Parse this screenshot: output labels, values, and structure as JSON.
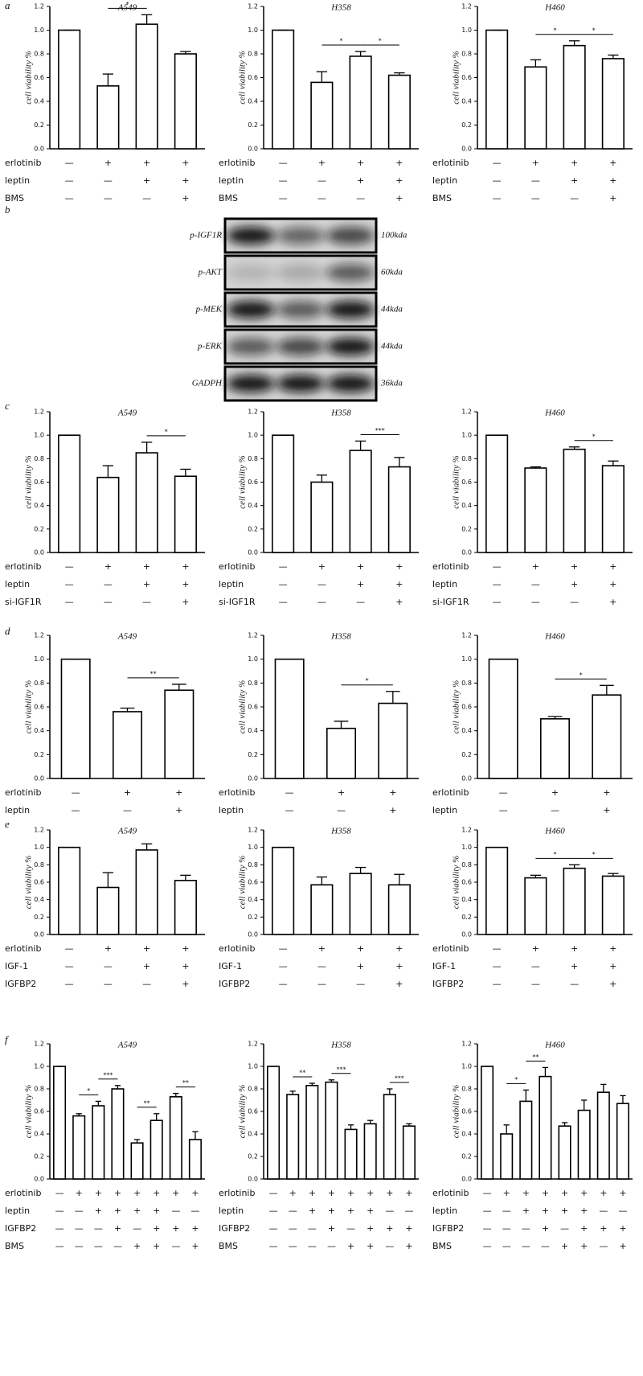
{
  "panel_labels": [
    "a",
    "b",
    "c",
    "d",
    "e",
    "f"
  ],
  "blot": {
    "bands": [
      {
        "name": "p-IGF1R",
        "size": "100kda"
      },
      {
        "name": "p-AKT",
        "size": "60kda"
      },
      {
        "name": "p-MEK",
        "size": "44kda"
      },
      {
        "name": "p-ERK",
        "size": "44kda"
      },
      {
        "name": "GADPH",
        "size": "36kda"
      }
    ]
  },
  "chart_data": [
    {
      "type": "bar",
      "title": "A549",
      "ylabel": "cell viability %",
      "ylim": [
        0,
        1.2
      ],
      "yticks": [
        {
          "value": 0,
          "label": "0.0"
        },
        0.2,
        0.4,
        0.6,
        0.8,
        {
          "value": 1,
          "label": "1.0"
        },
        1.2
      ],
      "values": [
        1.0,
        0.53,
        1.05,
        0.8
      ],
      "errors": [
        0,
        0.1,
        0.08,
        0.02
      ],
      "significance": [
        {
          "between": [
            1,
            2
          ],
          "label": "*"
        }
      ],
      "conditions": [
        {
          "label": "erlotinib",
          "marks": [
            "—",
            "+",
            "+",
            "+"
          ]
        },
        {
          "label": "leptin",
          "marks": [
            "—",
            "—",
            "+",
            "+"
          ]
        },
        {
          "label": "BMS",
          "marks": [
            "—",
            "—",
            "—",
            "+"
          ]
        }
      ]
    },
    {
      "type": "bar",
      "title": "H358",
      "ylabel": "cell viability %",
      "ylim": [
        0,
        1.2
      ],
      "yticks": [
        {
          "value": 0,
          "label": "0.0"
        },
        0.2,
        0.4,
        0.6,
        0.8,
        {
          "value": 1,
          "label": "1.0"
        },
        1.2
      ],
      "values": [
        1.0,
        0.56,
        0.78,
        0.62
      ],
      "errors": [
        0,
        0.09,
        0.04,
        0.02
      ],
      "significance": [
        {
          "between": [
            1,
            2
          ],
          "label": "*"
        },
        {
          "between": [
            2,
            3
          ],
          "label": "*"
        }
      ],
      "conditions": [
        {
          "label": "erlotinib",
          "marks": [
            "—",
            "+",
            "+",
            "+"
          ]
        },
        {
          "label": "leptin",
          "marks": [
            "—",
            "—",
            "+",
            "+"
          ]
        },
        {
          "label": "BMS",
          "marks": [
            "—",
            "—",
            "—",
            "+"
          ]
        }
      ]
    },
    {
      "type": "bar",
      "title": "H460",
      "ylabel": "cell viability %",
      "ylim": [
        0,
        1.2
      ],
      "yticks": [
        {
          "value": 0,
          "label": "0.0"
        },
        0.2,
        0.4,
        0.6,
        0.8,
        {
          "value": 1,
          "label": "1.0"
        },
        1.2
      ],
      "values": [
        1.0,
        0.69,
        0.87,
        0.76
      ],
      "errors": [
        0,
        0.06,
        0.04,
        0.03
      ],
      "significance": [
        {
          "between": [
            1,
            2
          ],
          "label": "*"
        },
        {
          "between": [
            2,
            3
          ],
          "label": "*"
        }
      ],
      "conditions": [
        {
          "label": "erlotinib",
          "marks": [
            "—",
            "+",
            "+",
            "+"
          ]
        },
        {
          "label": "leptin",
          "marks": [
            "—",
            "—",
            "+",
            "+"
          ]
        },
        {
          "label": "BMS",
          "marks": [
            "—",
            "—",
            "—",
            "+"
          ]
        }
      ]
    },
    {
      "type": "bar",
      "title": "A549",
      "ylabel": "cell viability %",
      "ylim": [
        0,
        1.2
      ],
      "yticks": [
        {
          "value": 0,
          "label": "0.0"
        },
        0.2,
        0.4,
        0.6,
        0.8,
        {
          "value": 1,
          "label": "1.0"
        },
        1.2
      ],
      "values": [
        1.0,
        0.64,
        0.85,
        0.65
      ],
      "errors": [
        0,
        0.1,
        0.09,
        0.06
      ],
      "significance": [
        {
          "between": [
            2,
            3
          ],
          "label": "*"
        }
      ],
      "conditions": [
        {
          "label": "erlotinib",
          "marks": [
            "—",
            "+",
            "+",
            "+"
          ]
        },
        {
          "label": "leptin",
          "marks": [
            "—",
            "—",
            "+",
            "+"
          ]
        },
        {
          "label": "si-IGF1R",
          "marks": [
            "—",
            "—",
            "—",
            "+"
          ]
        }
      ]
    },
    {
      "type": "bar",
      "title": "H358",
      "ylabel": "cell viability %",
      "ylim": [
        0,
        1.2
      ],
      "yticks": [
        {
          "value": 0,
          "label": "0.0"
        },
        0.2,
        0.4,
        0.6,
        0.8,
        {
          "value": 1,
          "label": "1.0"
        },
        1.2
      ],
      "values": [
        1.0,
        0.6,
        0.87,
        0.73
      ],
      "errors": [
        0,
        0.06,
        0.08,
        0.08
      ],
      "significance": [
        {
          "between": [
            2,
            3
          ],
          "label": "***"
        }
      ],
      "conditions": [
        {
          "label": "erlotinib",
          "marks": [
            "—",
            "+",
            "+",
            "+"
          ]
        },
        {
          "label": "leptin",
          "marks": [
            "—",
            "—",
            "+",
            "+"
          ]
        },
        {
          "label": "si-IGF1R",
          "marks": [
            "—",
            "—",
            "—",
            "+"
          ]
        }
      ]
    },
    {
      "type": "bar",
      "title": "H460",
      "ylabel": "cell viability %",
      "ylim": [
        0,
        1.2
      ],
      "yticks": [
        {
          "value": 0,
          "label": "0.0"
        },
        0.2,
        0.4,
        0.6,
        0.8,
        {
          "value": 1,
          "label": "1.0"
        },
        1.2
      ],
      "values": [
        1.0,
        0.72,
        0.88,
        0.74
      ],
      "errors": [
        0,
        0.01,
        0.02,
        0.04
      ],
      "significance": [
        {
          "between": [
            2,
            3
          ],
          "label": "*"
        }
      ],
      "conditions": [
        {
          "label": "erlotinib",
          "marks": [
            "—",
            "+",
            "+",
            "+"
          ]
        },
        {
          "label": "leptin",
          "marks": [
            "—",
            "—",
            "+",
            "+"
          ]
        },
        {
          "label": "si-IGF1R",
          "marks": [
            "—",
            "—",
            "—",
            "+"
          ]
        }
      ]
    },
    {
      "type": "bar",
      "title": "A549",
      "ylabel": "cell viability %",
      "ylim": [
        0,
        1.2
      ],
      "yticks": [
        {
          "value": 0,
          "label": "0.0"
        },
        0.2,
        0.4,
        0.6,
        0.8,
        {
          "value": 1,
          "label": "1.0"
        },
        1.2
      ],
      "values": [
        1.0,
        0.56,
        0.74
      ],
      "errors": [
        0,
        0.03,
        0.05
      ],
      "significance": [
        {
          "between": [
            1,
            2
          ],
          "label": "**"
        }
      ],
      "conditions": [
        {
          "label": "erlotinib",
          "marks": [
            "—",
            "+",
            "+"
          ]
        },
        {
          "label": "leptin",
          "marks": [
            "—",
            "—",
            "+"
          ]
        }
      ]
    },
    {
      "type": "bar",
      "title": "H358",
      "ylabel": "cell viability %",
      "ylim": [
        0,
        1.2
      ],
      "yticks": [
        {
          "value": 0,
          "label": "0.0"
        },
        0.2,
        0.4,
        0.6,
        0.8,
        {
          "value": 1,
          "label": "1.0"
        },
        1.2
      ],
      "values": [
        1.0,
        0.42,
        0.63
      ],
      "errors": [
        0,
        0.06,
        0.1
      ],
      "significance": [
        {
          "between": [
            1,
            2
          ],
          "label": "*"
        }
      ],
      "conditions": [
        {
          "label": "erlotinib",
          "marks": [
            "—",
            "+",
            "+"
          ]
        },
        {
          "label": "leptin",
          "marks": [
            "—",
            "—",
            "+"
          ]
        }
      ]
    },
    {
      "type": "bar",
      "title": "H460",
      "ylabel": "cell viability %",
      "ylim": [
        0,
        1.2
      ],
      "yticks": [
        {
          "value": 0,
          "label": "0.0"
        },
        0.2,
        0.4,
        0.6,
        0.8,
        {
          "value": 1,
          "label": "1.0"
        },
        1.2
      ],
      "values": [
        1.0,
        0.5,
        0.7
      ],
      "errors": [
        0,
        0.02,
        0.08
      ],
      "significance": [
        {
          "between": [
            1,
            2
          ],
          "label": "*"
        }
      ],
      "conditions": [
        {
          "label": "erlotinib",
          "marks": [
            "—",
            "+",
            "+"
          ]
        },
        {
          "label": "leptin",
          "marks": [
            "—",
            "—",
            "+"
          ]
        }
      ]
    },
    {
      "type": "bar",
      "title": "A549",
      "ylabel": "cell viability %",
      "ylim": [
        0,
        1.2
      ],
      "yticks": [
        {
          "value": 0,
          "label": "0.0"
        },
        0.2,
        0.4,
        0.6,
        0.8,
        {
          "value": 1,
          "label": "1.0"
        },
        1.2
      ],
      "values": [
        1.0,
        0.54,
        0.97,
        0.62
      ],
      "errors": [
        0,
        0.17,
        0.07,
        0.06
      ],
      "significance": [],
      "conditions": [
        {
          "label": "erlotinib",
          "marks": [
            "—",
            "+",
            "+",
            "+"
          ]
        },
        {
          "label": "IGF-1",
          "marks": [
            "—",
            "—",
            "+",
            "+"
          ]
        },
        {
          "label": "IGFBP2",
          "marks": [
            "—",
            "—",
            "—",
            "+"
          ]
        }
      ]
    },
    {
      "type": "bar",
      "title": "H358",
      "ylabel": "cell viability %",
      "ylim": [
        0,
        1.2
      ],
      "yticks": [
        {
          "value": 0,
          "label": "0.0"
        },
        0.2,
        0.4,
        0.6,
        0.8,
        {
          "value": 1,
          "label": "1.0"
        },
        1.2
      ],
      "values": [
        1.0,
        0.57,
        0.7,
        0.57
      ],
      "errors": [
        0,
        0.09,
        0.07,
        0.12
      ],
      "significance": [],
      "conditions": [
        {
          "label": "erlotinib",
          "marks": [
            "—",
            "+",
            "+",
            "+"
          ]
        },
        {
          "label": "IGF-1",
          "marks": [
            "—",
            "—",
            "+",
            "+"
          ]
        },
        {
          "label": "IGFBP2",
          "marks": [
            "—",
            "—",
            "—",
            "+"
          ]
        }
      ]
    },
    {
      "type": "bar",
      "title": "H460",
      "ylabel": "cell viability %",
      "ylim": [
        0,
        1.2
      ],
      "yticks": [
        {
          "value": 0,
          "label": "0.0"
        },
        0.2,
        0.4,
        0.6,
        0.8,
        {
          "value": 1,
          "label": "1.0"
        },
        1.2
      ],
      "values": [
        1.0,
        0.65,
        0.76,
        0.67
      ],
      "errors": [
        0,
        0.03,
        0.04,
        0.03
      ],
      "significance": [
        {
          "between": [
            1,
            2
          ],
          "label": "*"
        },
        {
          "between": [
            2,
            3
          ],
          "label": "*"
        }
      ],
      "conditions": [
        {
          "label": "erlotinib",
          "marks": [
            "—",
            "+",
            "+",
            "+"
          ]
        },
        {
          "label": "IGF-1",
          "marks": [
            "—",
            "—",
            "+",
            "+"
          ]
        },
        {
          "label": "IGFBP2",
          "marks": [
            "—",
            "—",
            "—",
            "+"
          ]
        }
      ]
    },
    {
      "type": "bar",
      "title": "A549",
      "ylabel": "cell viability %",
      "ylim": [
        0,
        1.2
      ],
      "yticks": [
        {
          "value": 0,
          "label": "0.0"
        },
        0.2,
        0.4,
        0.6,
        0.8,
        {
          "value": 1,
          "label": "1.0"
        },
        1.2
      ],
      "values": [
        1.0,
        0.56,
        0.65,
        0.8,
        0.32,
        0.52,
        0.73,
        0.35
      ],
      "errors": [
        0,
        0.02,
        0.04,
        0.03,
        0.03,
        0.06,
        0.03,
        0.07
      ],
      "significance": [
        {
          "between": [
            1,
            2
          ],
          "label": "*"
        },
        {
          "between": [
            2,
            3
          ],
          "label": "***"
        },
        {
          "between": [
            4,
            5
          ],
          "label": "**"
        },
        {
          "between": [
            6,
            7
          ],
          "label": "**"
        }
      ],
      "conditions": [
        {
          "label": "erlotinib",
          "marks": [
            "—",
            "+",
            "+",
            "+",
            "+",
            "+",
            "+",
            "+"
          ]
        },
        {
          "label": "leptin",
          "marks": [
            "—",
            "—",
            "+",
            "+",
            "+",
            "+",
            "—",
            "—"
          ]
        },
        {
          "label": "IGFBP2",
          "marks": [
            "—",
            "—",
            "—",
            "+",
            "—",
            "+",
            "+",
            "+"
          ]
        },
        {
          "label": "BMS",
          "marks": [
            "—",
            "—",
            "—",
            "—",
            "+",
            "+",
            "—",
            "+"
          ]
        }
      ]
    },
    {
      "type": "bar",
      "title": "H358",
      "ylabel": "cell viability %",
      "ylim": [
        0,
        1.2
      ],
      "yticks": [
        {
          "value": 0,
          "label": "0.0"
        },
        0.2,
        0.4,
        0.6,
        0.8,
        {
          "value": 1,
          "label": "1.0"
        },
        1.2
      ],
      "values": [
        1.0,
        0.75,
        0.83,
        0.86,
        0.44,
        0.49,
        0.75,
        0.47
      ],
      "errors": [
        0,
        0.03,
        0.02,
        0.02,
        0.04,
        0.03,
        0.05,
        0.02
      ],
      "significance": [
        {
          "between": [
            1,
            2
          ],
          "label": "**"
        },
        {
          "between": [
            3,
            4
          ],
          "label": "***"
        },
        {
          "between": [
            6,
            7
          ],
          "label": "***"
        }
      ],
      "conditions": [
        {
          "label": "erlotinib",
          "marks": [
            "—",
            "+",
            "+",
            "+",
            "+",
            "+",
            "+",
            "+"
          ]
        },
        {
          "label": "leptin",
          "marks": [
            "—",
            "—",
            "+",
            "+",
            "+",
            "+",
            "—",
            "—"
          ]
        },
        {
          "label": "IGFBP2",
          "marks": [
            "—",
            "—",
            "—",
            "+",
            "—",
            "+",
            "+",
            "+"
          ]
        },
        {
          "label": "BMS",
          "marks": [
            "—",
            "—",
            "—",
            "—",
            "+",
            "+",
            "—",
            "+"
          ]
        }
      ]
    },
    {
      "type": "bar",
      "title": "H460",
      "ylabel": "cell viability %",
      "ylim": [
        0,
        1.2
      ],
      "yticks": [
        {
          "value": 0,
          "label": "0.0"
        },
        0.2,
        0.4,
        0.6,
        0.8,
        {
          "value": 1,
          "label": "1.0"
        },
        1.2
      ],
      "values": [
        1.0,
        0.4,
        0.69,
        0.91,
        0.47,
        0.61,
        0.77,
        0.67
      ],
      "errors": [
        0,
        0.08,
        0.1,
        0.08,
        0.03,
        0.09,
        0.07,
        0.07
      ],
      "significance": [
        {
          "between": [
            1,
            2
          ],
          "label": "*"
        },
        {
          "between": [
            2,
            3
          ],
          "label": "**"
        }
      ],
      "conditions": [
        {
          "label": "erlotinib",
          "marks": [
            "—",
            "+",
            "+",
            "+",
            "+",
            "+",
            "+",
            "+"
          ]
        },
        {
          "label": "leptin",
          "marks": [
            "—",
            "—",
            "+",
            "+",
            "+",
            "+",
            "—",
            "—"
          ]
        },
        {
          "label": "IGFBP2",
          "marks": [
            "—",
            "—",
            "—",
            "+",
            "—",
            "+",
            "+",
            "+"
          ]
        },
        {
          "label": "BMS",
          "marks": [
            "—",
            "—",
            "—",
            "—",
            "+",
            "+",
            "—",
            "+"
          ]
        }
      ]
    }
  ]
}
